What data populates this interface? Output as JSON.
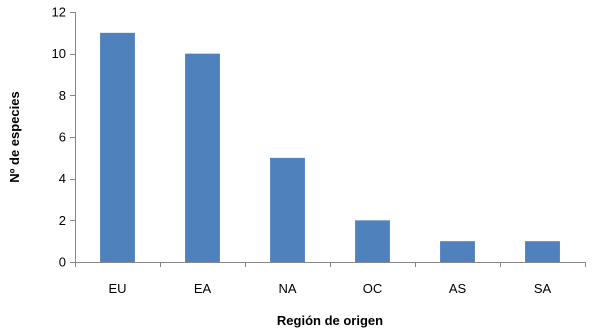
{
  "chart_data": {
    "type": "bar",
    "categories": [
      "EU",
      "EA",
      "NA",
      "OC",
      "AS",
      "SA"
    ],
    "values": [
      11,
      10,
      5,
      2,
      1,
      1
    ],
    "title": "",
    "xlabel": "Región de origen",
    "ylabel": "Nº de especies",
    "ylim": [
      0,
      12
    ],
    "yticks": [
      0,
      2,
      4,
      6,
      8,
      10,
      12
    ],
    "grid": false,
    "legend": "none",
    "bar_color": "#4F81BD",
    "axis_color": "#868686"
  }
}
